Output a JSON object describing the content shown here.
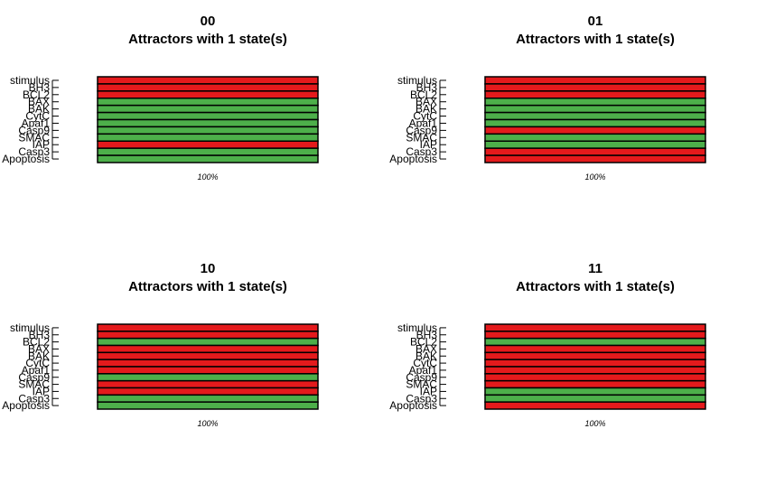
{
  "chart_data": [
    {
      "type": "heatmap",
      "title": "00",
      "subtitle": "Attractors with 1 state(s)",
      "rows": [
        "stimulus",
        "BH3",
        "BCL2",
        "BAX",
        "BAK",
        "CytC",
        "Apaf1",
        "Casp9",
        "SMAC",
        "IAP",
        "Casp3",
        "Apoptosis"
      ],
      "values": [
        0,
        0,
        0,
        1,
        1,
        1,
        1,
        1,
        1,
        0,
        1,
        1
      ],
      "column_label": "100%"
    },
    {
      "type": "heatmap",
      "title": "01",
      "subtitle": "Attractors with 1 state(s)",
      "rows": [
        "stimulus",
        "BH3",
        "BCL2",
        "BAX",
        "BAK",
        "CytC",
        "Apaf1",
        "Casp9",
        "SMAC",
        "IAP",
        "Casp3",
        "Apoptosis"
      ],
      "values": [
        0,
        0,
        0,
        1,
        1,
        1,
        1,
        0,
        1,
        1,
        0,
        0
      ],
      "column_label": "100%"
    },
    {
      "type": "heatmap",
      "title": "10",
      "subtitle": "Attractors with 1 state(s)",
      "rows": [
        "stimulus",
        "BH3",
        "BCL2",
        "BAX",
        "BAK",
        "CytC",
        "Apaf1",
        "Casp9",
        "SMAC",
        "IAP",
        "Casp3",
        "Apoptosis"
      ],
      "values": [
        0,
        0,
        1,
        0,
        0,
        0,
        0,
        1,
        0,
        0,
        1,
        1
      ],
      "column_label": "100%"
    },
    {
      "type": "heatmap",
      "title": "11",
      "subtitle": "Attractors with 1 state(s)",
      "rows": [
        "stimulus",
        "BH3",
        "BCL2",
        "BAX",
        "BAK",
        "CytC",
        "Apaf1",
        "Casp9",
        "SMAC",
        "IAP",
        "Casp3",
        "Apoptosis"
      ],
      "values": [
        0,
        0,
        1,
        0,
        0,
        0,
        0,
        0,
        0,
        1,
        1,
        0
      ],
      "column_label": "100%"
    }
  ],
  "colors": {
    "on": "#4daf4a",
    "off": "#e41a1c",
    "border": "#000000"
  }
}
